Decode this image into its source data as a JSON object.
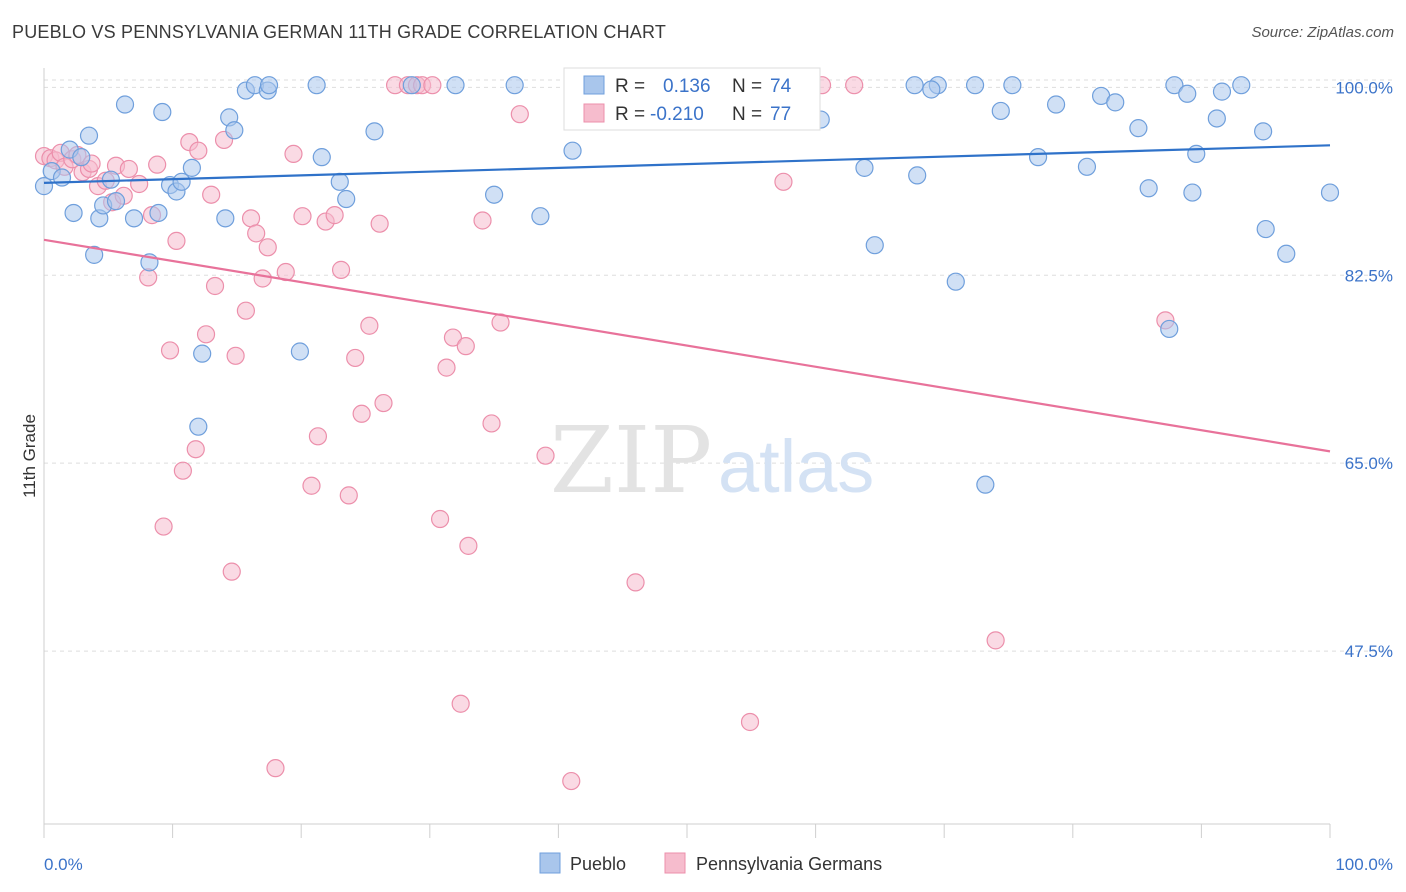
{
  "title": "PUEBLO VS PENNSYLVANIA GERMAN 11TH GRADE CORRELATION CHART",
  "source": "Source: ZipAtlas.com",
  "colors": {
    "blue_fill": "#a9c6ec",
    "blue_stroke": "#6f9fdc",
    "blue_line": "#2f72c9",
    "pink_fill": "#f6bccd",
    "pink_stroke": "#ec8fab",
    "pink_line": "#e8729a",
    "tick_text": "#3b73c9",
    "grid": "#dddddd"
  },
  "legend": {
    "rows": [
      {
        "r_label": "R =",
        "r_value": "0.136",
        "n_label": "N =",
        "n_value": "74"
      },
      {
        "r_label": "R =",
        "r_value": "-0.210",
        "n_label": "N =",
        "n_value": "77"
      }
    ]
  },
  "watermark": {
    "zip": "ZIP",
    "atlas": "atlas"
  },
  "chart_data": {
    "type": "scatter",
    "title": "PUEBLO VS PENNSYLVANIA GERMAN 11TH GRADE CORRELATION CHART",
    "xlabel": "",
    "ylabel": "11th Grade",
    "xlim": [
      0,
      100
    ],
    "ylim": [
      31.4,
      101.8
    ],
    "x_tick_labels": [
      "0.0%",
      "100.0%"
    ],
    "y_ticks": [
      100.0,
      82.5,
      65.0,
      47.5
    ],
    "y_tick_labels": [
      "100.0%",
      "82.5%",
      "65.0%",
      "47.5%"
    ],
    "grid": "horizontal dashed",
    "legend_position": "top-center and bottom",
    "series": [
      {
        "name": "Pueblo",
        "color": "#a9c6ec",
        "trend": {
          "x": [
            0,
            100
          ],
          "y": [
            91.1,
            94.6
          ]
        },
        "points": [
          [
            0.0,
            90.8
          ],
          [
            0.6,
            92.2
          ],
          [
            1.4,
            91.6
          ],
          [
            2.0,
            94.2
          ],
          [
            2.3,
            88.3
          ],
          [
            2.9,
            93.5
          ],
          [
            3.5,
            95.5
          ],
          [
            3.9,
            84.4
          ],
          [
            4.3,
            87.8
          ],
          [
            4.6,
            89.0
          ],
          [
            5.2,
            91.4
          ],
          [
            5.6,
            89.4
          ],
          [
            6.3,
            98.4
          ],
          [
            7.0,
            87.8
          ],
          [
            8.2,
            83.7
          ],
          [
            8.9,
            88.3
          ],
          [
            9.2,
            97.7
          ],
          [
            9.8,
            90.9
          ],
          [
            10.3,
            90.3
          ],
          [
            10.7,
            91.2
          ],
          [
            11.5,
            92.5
          ],
          [
            12.0,
            68.4
          ],
          [
            12.3,
            75.2
          ],
          [
            14.1,
            87.8
          ],
          [
            14.4,
            97.2
          ],
          [
            14.8,
            96.0
          ],
          [
            15.7,
            99.7
          ],
          [
            16.4,
            100.2
          ],
          [
            17.4,
            99.7
          ],
          [
            17.5,
            100.2
          ],
          [
            19.9,
            75.4
          ],
          [
            21.2,
            100.2
          ],
          [
            21.6,
            93.5
          ],
          [
            23.0,
            91.2
          ],
          [
            23.5,
            89.6
          ],
          [
            25.7,
            95.9
          ],
          [
            28.6,
            100.2
          ],
          [
            32.0,
            100.2
          ],
          [
            35.0,
            90.0
          ],
          [
            36.6,
            100.2
          ],
          [
            38.6,
            88.0
          ],
          [
            41.1,
            94.1
          ],
          [
            48.5,
            100.2
          ],
          [
            50.1,
            100.2
          ],
          [
            60.4,
            97.0
          ],
          [
            63.8,
            92.5
          ],
          [
            64.6,
            85.3
          ],
          [
            67.9,
            91.8
          ],
          [
            67.7,
            100.2
          ],
          [
            69.5,
            100.2
          ],
          [
            69.0,
            99.8
          ],
          [
            70.9,
            81.9
          ],
          [
            72.4,
            100.2
          ],
          [
            73.2,
            63.0
          ],
          [
            74.4,
            97.8
          ],
          [
            75.3,
            100.2
          ],
          [
            77.3,
            93.5
          ],
          [
            78.7,
            98.4
          ],
          [
            81.1,
            92.6
          ],
          [
            82.2,
            99.2
          ],
          [
            83.3,
            98.6
          ],
          [
            85.1,
            96.2
          ],
          [
            85.9,
            90.6
          ],
          [
            87.5,
            77.5
          ],
          [
            87.9,
            100.2
          ],
          [
            88.9,
            99.4
          ],
          [
            89.3,
            90.2
          ],
          [
            89.6,
            93.8
          ],
          [
            91.6,
            99.6
          ],
          [
            91.2,
            97.1
          ],
          [
            93.1,
            100.2
          ],
          [
            94.8,
            95.9
          ],
          [
            95.0,
            86.8
          ],
          [
            96.6,
            84.5
          ],
          [
            100.0,
            90.2
          ]
        ]
      },
      {
        "name": "Pennsylvania Germans",
        "color": "#f6bccd",
        "trend": {
          "x": [
            0,
            100
          ],
          "y": [
            85.8,
            66.1
          ]
        },
        "points": [
          [
            0.0,
            93.6
          ],
          [
            0.5,
            93.4
          ],
          [
            0.9,
            93.2
          ],
          [
            1.3,
            93.9
          ],
          [
            1.6,
            92.6
          ],
          [
            2.2,
            93.3
          ],
          [
            2.6,
            93.7
          ],
          [
            3.0,
            92.1
          ],
          [
            3.5,
            92.4
          ],
          [
            3.7,
            92.9
          ],
          [
            4.2,
            90.8
          ],
          [
            4.8,
            91.3
          ],
          [
            5.3,
            89.3
          ],
          [
            5.6,
            92.7
          ],
          [
            6.2,
            89.9
          ],
          [
            6.6,
            92.4
          ],
          [
            7.4,
            91.0
          ],
          [
            8.1,
            82.3
          ],
          [
            8.4,
            88.1
          ],
          [
            8.8,
            92.8
          ],
          [
            9.3,
            59.1
          ],
          [
            9.8,
            75.5
          ],
          [
            10.3,
            85.7
          ],
          [
            10.8,
            64.3
          ],
          [
            11.3,
            94.9
          ],
          [
            11.8,
            66.3
          ],
          [
            12.0,
            94.1
          ],
          [
            12.6,
            77.0
          ],
          [
            13.0,
            90.0
          ],
          [
            13.3,
            81.5
          ],
          [
            14.0,
            95.1
          ],
          [
            14.6,
            54.9
          ],
          [
            14.9,
            75.0
          ],
          [
            15.7,
            79.2
          ],
          [
            16.1,
            87.8
          ],
          [
            16.5,
            86.4
          ],
          [
            17.0,
            82.2
          ],
          [
            17.4,
            85.1
          ],
          [
            18.0,
            36.6
          ],
          [
            18.8,
            82.8
          ],
          [
            19.4,
            93.8
          ],
          [
            20.1,
            88.0
          ],
          [
            20.8,
            62.9
          ],
          [
            21.3,
            67.5
          ],
          [
            21.9,
            87.5
          ],
          [
            22.6,
            88.1
          ],
          [
            23.1,
            83.0
          ],
          [
            23.7,
            62.0
          ],
          [
            24.2,
            74.8
          ],
          [
            24.7,
            69.6
          ],
          [
            25.3,
            77.8
          ],
          [
            26.1,
            87.3
          ],
          [
            26.4,
            70.6
          ],
          [
            27.3,
            100.2
          ],
          [
            28.3,
            100.2
          ],
          [
            29.0,
            100.2
          ],
          [
            29.4,
            100.2
          ],
          [
            30.2,
            100.2
          ],
          [
            30.8,
            59.8
          ],
          [
            31.3,
            73.9
          ],
          [
            31.8,
            76.7
          ],
          [
            32.4,
            42.6
          ],
          [
            32.8,
            75.9
          ],
          [
            33.0,
            57.3
          ],
          [
            34.1,
            87.6
          ],
          [
            34.8,
            68.7
          ],
          [
            35.5,
            78.1
          ],
          [
            37.0,
            97.5
          ],
          [
            39.0,
            65.7
          ],
          [
            41.0,
            35.4
          ],
          [
            46.0,
            53.9
          ],
          [
            54.9,
            40.9
          ],
          [
            57.5,
            91.2
          ],
          [
            60.5,
            100.2
          ],
          [
            63.0,
            100.2
          ],
          [
            74.0,
            48.5
          ],
          [
            87.2,
            78.3
          ]
        ]
      }
    ]
  },
  "bottom_legend": {
    "items": [
      "Pueblo",
      "Pennsylvania Germans"
    ]
  }
}
